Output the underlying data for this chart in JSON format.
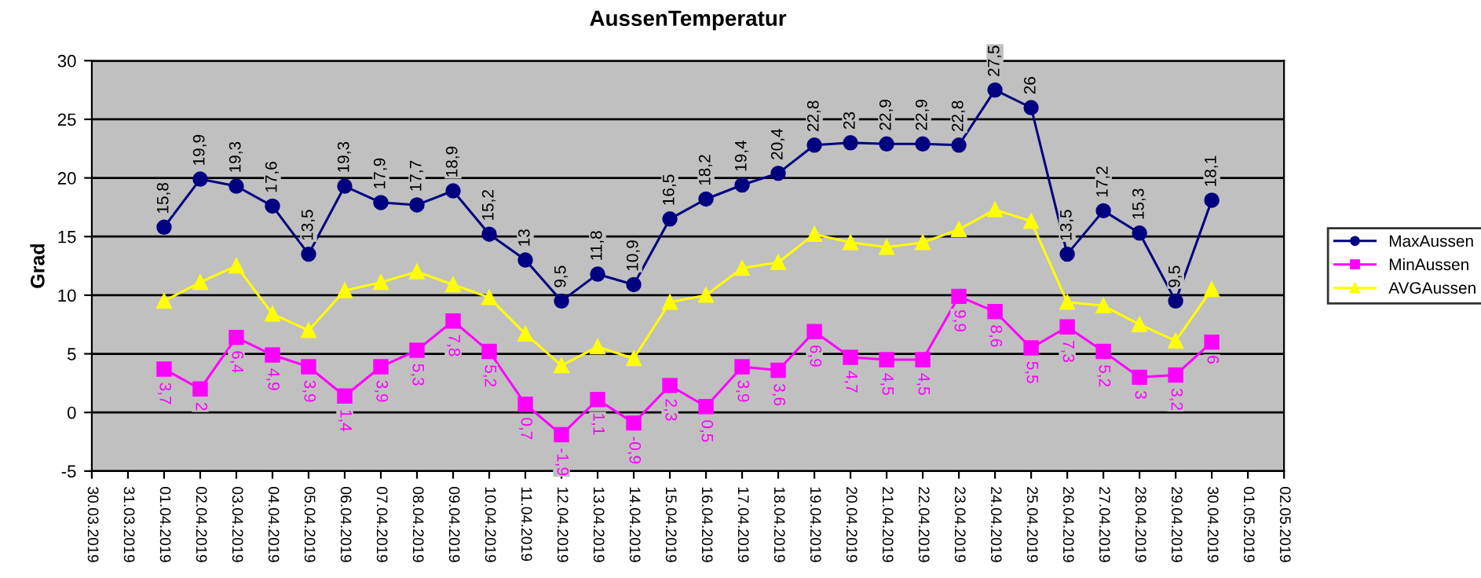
{
  "chart_data": {
    "type": "line",
    "title": "AussenTemperatur",
    "ylabel": "Grad",
    "x": [
      "2019-04-01",
      "2019-04-02",
      "2019-04-03",
      "2019-04-04",
      "2019-04-05",
      "2019-04-06",
      "2019-04-07",
      "2019-04-08",
      "2019-04-09",
      "2019-04-10",
      "2019-04-11",
      "2019-04-12",
      "2019-04-13",
      "2019-04-14",
      "2019-04-15",
      "2019-04-16",
      "2019-04-17",
      "2019-04-18",
      "2019-04-19",
      "2019-04-20",
      "2019-04-21",
      "2019-04-22",
      "2019-04-23",
      "2019-04-24",
      "2019-04-25",
      "2019-04-26",
      "2019-04-27",
      "2019-04-28",
      "2019-04-29",
      "2019-04-30"
    ],
    "series": [
      {
        "name": "MaxAussen",
        "color": "#000080",
        "marker": "circle",
        "values": [
          15.8,
          19.9,
          19.3,
          17.6,
          13.5,
          19.3,
          17.9,
          17.7,
          18.9,
          15.2,
          13,
          9.5,
          11.8,
          10.9,
          16.5,
          18.2,
          19.4,
          20.4,
          22.8,
          23,
          22.9,
          22.9,
          22.8,
          27.5,
          26,
          13.5,
          17.2,
          15.3,
          9.5,
          18.1
        ],
        "value_labels": [
          "15,8",
          "19,9",
          "19,3",
          "17,6",
          "13,5",
          "19,3",
          "17,9",
          "17,7",
          "18,9",
          "15,2",
          "13",
          "9,5",
          "11,8",
          "10,9",
          "16,5",
          "18,2",
          "19,4",
          "20,4",
          "22,8",
          "23",
          "22,9",
          "22,9",
          "22,8",
          "27,5",
          "26",
          "13,5",
          "17,2",
          "15,3",
          "9,5",
          "18,1"
        ]
      },
      {
        "name": "MinAussen",
        "color": "#ff00ff",
        "marker": "square",
        "values": [
          3.7,
          2,
          6.4,
          4.9,
          3.9,
          1.4,
          3.9,
          5.3,
          7.8,
          5.2,
          0.7,
          -1.9,
          1.1,
          -0.9,
          2.3,
          0.5,
          3.9,
          3.6,
          6.9,
          4.7,
          4.5,
          4.5,
          9.9,
          8.6,
          5.5,
          7.3,
          5.2,
          3,
          3.2,
          6
        ],
        "value_labels": [
          "3,7",
          "2",
          "6,4",
          "4,9",
          "3,9",
          "1,4",
          "3,9",
          "5,3",
          "7,8",
          "5,2",
          "0,7",
          "-1,9",
          "1,1",
          "-0,9",
          "2,3",
          "0,5",
          "3,9",
          "3,6",
          "6,9",
          "4,7",
          "4,5",
          "4,5",
          "9,9",
          "8,6",
          "5,5",
          "7,3",
          "5,2",
          "3",
          "3,2",
          "6"
        ]
      },
      {
        "name": "AVGAussen",
        "color": "#ffff00",
        "marker": "triangle",
        "values": [
          9.5,
          11.1,
          12.5,
          8.4,
          7.0,
          10.4,
          11.1,
          12.0,
          10.9,
          9.8,
          6.7,
          4.0,
          5.6,
          4.6,
          9.4,
          10.0,
          12.3,
          12.8,
          15.2,
          14.5,
          14.1,
          14.5,
          15.6,
          17.3,
          16.3,
          9.4,
          9.1,
          7.5,
          6.1,
          10.5
        ]
      }
    ],
    "xlim": [
      "2019-03-30",
      "2019-05-02"
    ],
    "xticks": [
      {
        "value": "2019-03-30",
        "label": "30.03.2019"
      },
      {
        "value": "2019-03-31",
        "label": "31.03.2019"
      },
      {
        "value": "2019-04-01",
        "label": "01.04.2019"
      },
      {
        "value": "2019-04-02",
        "label": "02.04.2019"
      },
      {
        "value": "2019-04-03",
        "label": "03.04.2019"
      },
      {
        "value": "2019-04-04",
        "label": "04.04.2019"
      },
      {
        "value": "2019-04-05",
        "label": "05.04.2019"
      },
      {
        "value": "2019-04-06",
        "label": "06.04.2019"
      },
      {
        "value": "2019-04-07",
        "label": "07.04.2019"
      },
      {
        "value": "2019-04-08",
        "label": "08.04.2019"
      },
      {
        "value": "2019-04-09",
        "label": "09.04.2019"
      },
      {
        "value": "2019-04-10",
        "label": "10.04.2019"
      },
      {
        "value": "2019-04-11",
        "label": "11.04.2019"
      },
      {
        "value": "2019-04-12",
        "label": "12.04.2019"
      },
      {
        "value": "2019-04-13",
        "label": "13.04.2019"
      },
      {
        "value": "2019-04-14",
        "label": "14.04.2019"
      },
      {
        "value": "2019-04-15",
        "label": "15.04.2019"
      },
      {
        "value": "2019-04-16",
        "label": "16.04.2019"
      },
      {
        "value": "2019-04-17",
        "label": "17.04.2019"
      },
      {
        "value": "2019-04-18",
        "label": "18.04.2019"
      },
      {
        "value": "2019-04-19",
        "label": "19.04.2019"
      },
      {
        "value": "2019-04-20",
        "label": "20.04.2019"
      },
      {
        "value": "2019-04-21",
        "label": "21.04.2019"
      },
      {
        "value": "2019-04-22",
        "label": "22.04.2019"
      },
      {
        "value": "2019-04-23",
        "label": "23.04.2019"
      },
      {
        "value": "2019-04-24",
        "label": "24.04.2019"
      },
      {
        "value": "2019-04-25",
        "label": "25.04.2019"
      },
      {
        "value": "2019-04-26",
        "label": "26.04.2019"
      },
      {
        "value": "2019-04-27",
        "label": "27.04.2019"
      },
      {
        "value": "2019-04-28",
        "label": "28.04.2019"
      },
      {
        "value": "2019-04-29",
        "label": "29.04.2019"
      },
      {
        "value": "2019-04-30",
        "label": "30.04.2019"
      },
      {
        "value": "2019-05-01",
        "label": "01.05.2019"
      },
      {
        "value": "2019-05-02",
        "label": "02.05.2019"
      }
    ],
    "ylim": [
      -5,
      30
    ],
    "yticks": [
      -5,
      0,
      5,
      10,
      15,
      20,
      25,
      30
    ],
    "grid": "y",
    "legend": "right",
    "line_style": "solid"
  }
}
